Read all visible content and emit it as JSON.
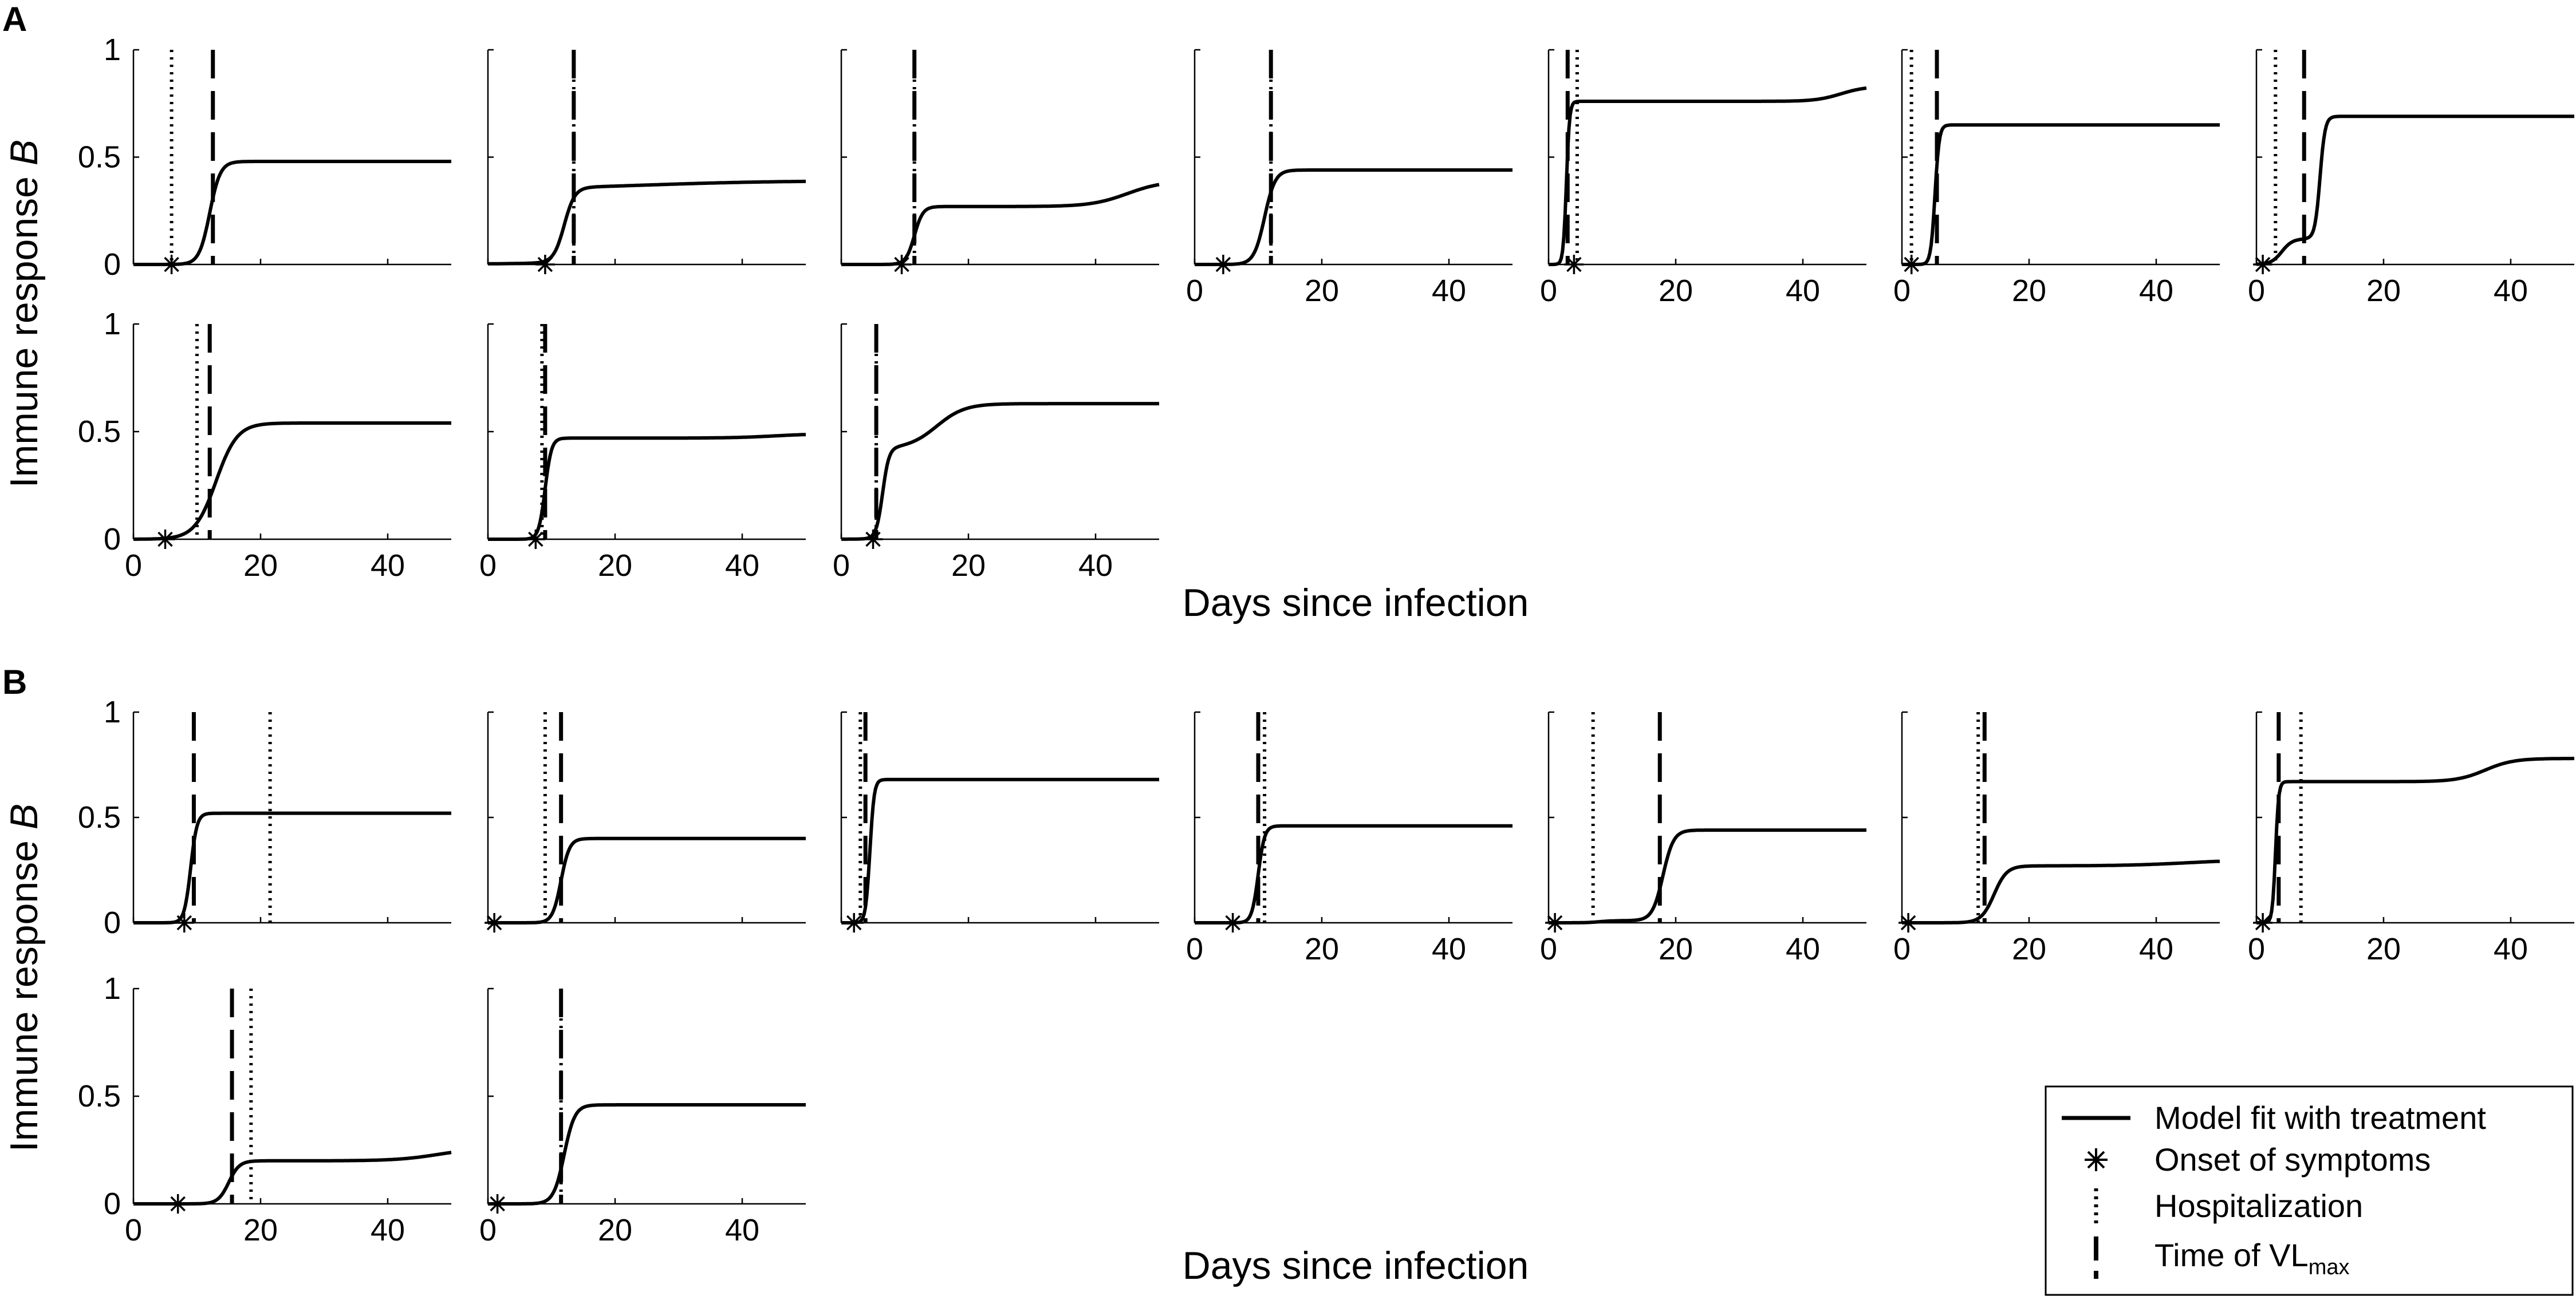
{
  "figure": {
    "ylabel_prefix": "Immune response ",
    "ylabel_var": "B",
    "xlabel": "Days since infection"
  },
  "legend": {
    "fit": "Model fit with treatment",
    "onset": "Onset of symptoms",
    "hosp": "Hospitalization",
    "vl_prefix": "Time of VL",
    "vl_sub": "max"
  },
  "chart_data": [
    {
      "panel": "A",
      "type": "line",
      "xlabel": "Days since infection",
      "ylabel": "Immune response B",
      "xlim": [
        0,
        50
      ],
      "ylim": [
        0,
        1
      ],
      "xticks": [
        0,
        20,
        40
      ],
      "yticks": [
        0,
        0.5,
        1
      ],
      "ytick_labels": [
        "0",
        "0.5",
        "1"
      ],
      "subplots": [
        {
          "row": 0,
          "col": 0,
          "x_ticklabels": false,
          "onset": 6,
          "hospitalization": 6,
          "vl_max": 12.5,
          "curve": {
            "plateau": 0.48,
            "t_mid": 12,
            "rate": 1.2
          }
        },
        {
          "row": 0,
          "col": 1,
          "x_ticklabels": false,
          "onset": 9,
          "hospitalization": 13.5,
          "vl_max": 13.5,
          "curve": {
            "plateau": 0.35,
            "t_mid": 12,
            "rate": 1.2,
            "late_rise": 0.04,
            "late_mid": 25,
            "late_rate": 0.1
          }
        },
        {
          "row": 0,
          "col": 2,
          "x_ticklabels": false,
          "onset": 9.5,
          "hospitalization": 11.5,
          "vl_max": 11.5,
          "curve": {
            "plateau": 0.27,
            "t_mid": 11.5,
            "rate": 1.5,
            "late_rise": 0.12,
            "late_mid": 45,
            "late_rate": 0.35
          }
        },
        {
          "row": 0,
          "col": 3,
          "x_ticklabels": true,
          "onset": 4.5,
          "hospitalization": 12,
          "vl_max": 12,
          "curve": {
            "plateau": 0.44,
            "t_mid": 11,
            "rate": 1.2
          }
        },
        {
          "row": 0,
          "col": 4,
          "x_ticklabels": true,
          "onset": 4,
          "hospitalization": 4.5,
          "vl_max": 3,
          "curve": {
            "plateau": 0.76,
            "t_mid": 2.8,
            "rate": 4,
            "late_rise": 0.07,
            "late_mid": 46,
            "late_rate": 0.5
          }
        },
        {
          "row": 0,
          "col": 5,
          "x_ticklabels": true,
          "onset": 1.5,
          "hospitalization": 1.5,
          "vl_max": 5.5,
          "curve": {
            "plateau": 0.65,
            "t_mid": 5.2,
            "rate": 3
          }
        },
        {
          "row": 0,
          "col": 6,
          "x_ticklabels": true,
          "onset": 1,
          "hospitalization": 3,
          "vl_max": 7.5,
          "curve": {
            "plateau": 0.69,
            "t_mid": 10,
            "rate": 2.5,
            "early_step": 0.12,
            "early_mid": 4,
            "early_rate": 1.2
          }
        },
        {
          "row": 1,
          "col": 0,
          "x_ticklabels": true,
          "onset": 5,
          "hospitalization": 10,
          "vl_max": 12,
          "curve": {
            "plateau": 0.54,
            "t_mid": 13,
            "rate": 0.6
          }
        },
        {
          "row": 1,
          "col": 1,
          "x_ticklabels": true,
          "onset": 7.5,
          "hospitalization": 8.5,
          "vl_max": 9,
          "curve": {
            "plateau": 0.47,
            "t_mid": 9,
            "rate": 2,
            "late_rise": 0.02,
            "late_mid": 45,
            "late_rate": 0.3
          }
        },
        {
          "row": 1,
          "col": 2,
          "x_ticklabels": true,
          "onset": 5,
          "hospitalization": 5.5,
          "vl_max": 5.5,
          "curve": {
            "plateau": 0.42,
            "t_mid": 6.5,
            "rate": 2,
            "late_rise": 0.21,
            "late_mid": 15,
            "late_rate": 0.45
          }
        }
      ]
    },
    {
      "panel": "B",
      "type": "line",
      "xlabel": "Days since infection",
      "ylabel": "Immune response B",
      "xlim": [
        0,
        50
      ],
      "ylim": [
        0,
        1
      ],
      "xticks": [
        0,
        20,
        40
      ],
      "yticks": [
        0,
        0.5,
        1
      ],
      "ytick_labels": [
        "0",
        "0.5",
        "1"
      ],
      "subplots": [
        {
          "row": 0,
          "col": 0,
          "x_ticklabels": false,
          "onset": 8,
          "hospitalization": 21.5,
          "vl_max": 9.5,
          "curve": {
            "plateau": 0.52,
            "t_mid": 9,
            "rate": 2
          }
        },
        {
          "row": 0,
          "col": 1,
          "x_ticklabels": false,
          "onset": 1,
          "hospitalization": 9,
          "vl_max": 11.5,
          "curve": {
            "plateau": 0.4,
            "t_mid": 11.5,
            "rate": 1.5
          }
        },
        {
          "row": 0,
          "col": 2,
          "x_ticklabels": false,
          "onset": 2,
          "hospitalization": 3,
          "vl_max": 3.8,
          "curve": {
            "plateau": 0.68,
            "t_mid": 4.5,
            "rate": 3
          }
        },
        {
          "row": 0,
          "col": 3,
          "x_ticklabels": true,
          "onset": 6,
          "hospitalization": 11,
          "vl_max": 10,
          "curve": {
            "plateau": 0.46,
            "t_mid": 10,
            "rate": 2
          }
        },
        {
          "row": 0,
          "col": 4,
          "x_ticklabels": true,
          "onset": 1,
          "hospitalization": 7,
          "vl_max": 17.5,
          "curve": {
            "plateau": 0.44,
            "t_mid": 18,
            "rate": 1.2,
            "early_step": 0.01,
            "early_mid": 8,
            "early_rate": 1
          }
        },
        {
          "row": 0,
          "col": 5,
          "x_ticklabels": true,
          "onset": 1,
          "hospitalization": 12,
          "vl_max": 13,
          "curve": {
            "plateau": 0.27,
            "t_mid": 14.5,
            "rate": 1,
            "late_rise": 0.03,
            "late_mid": 45,
            "late_rate": 0.2
          }
        },
        {
          "row": 0,
          "col": 6,
          "x_ticklabels": true,
          "onset": 1,
          "hospitalization": 7,
          "vl_max": 3.5,
          "curve": {
            "plateau": 0.67,
            "t_mid": 3,
            "rate": 4,
            "late_rise": 0.11,
            "late_mid": 36,
            "late_rate": 0.45
          }
        },
        {
          "row": 1,
          "col": 0,
          "x_ticklabels": true,
          "onset": 7,
          "hospitalization": 18.5,
          "vl_max": 15.5,
          "curve": {
            "plateau": 0.2,
            "t_mid": 15,
            "rate": 1.2,
            "late_rise": 0.06,
            "late_mid": 48,
            "late_rate": 0.3
          }
        },
        {
          "row": 1,
          "col": 1,
          "x_ticklabels": true,
          "onset": 1.5,
          "hospitalization": 11.5,
          "vl_max": 11.5,
          "curve": {
            "plateau": 0.46,
            "t_mid": 12,
            "rate": 1.2
          }
        }
      ]
    }
  ]
}
